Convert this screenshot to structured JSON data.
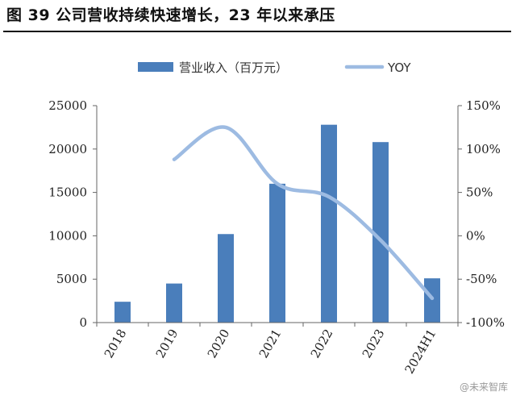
{
  "title": "图 39 公司营收持续快速增长，23 年以来承压",
  "watermark": "@未来智库",
  "colors": {
    "bar": "#4a7ebb",
    "line": "#9dbbe2",
    "axis": "#666666"
  },
  "chart_data": {
    "type": "bar",
    "categories": [
      "2018",
      "2019",
      "2020",
      "2021",
      "2022",
      "2023",
      "2024H1"
    ],
    "series": [
      {
        "name": "营业收入（百万元）",
        "type": "bar",
        "axis": "left",
        "values": [
          2400,
          4500,
          10200,
          16000,
          22800,
          20800,
          5100
        ]
      },
      {
        "name": "YOY",
        "type": "line",
        "axis": "right",
        "smooth": true,
        "values": [
          null,
          88,
          125,
          60,
          45,
          -5,
          -72
        ]
      }
    ],
    "y_left": {
      "lim": [
        0,
        25000
      ],
      "ticks": [
        "0",
        "5000",
        "10000",
        "15000",
        "20000",
        "25000"
      ],
      "tick_values": [
        0,
        5000,
        10000,
        15000,
        20000,
        25000
      ]
    },
    "y_right": {
      "lim": [
        -100,
        150
      ],
      "ticks": [
        "-100%",
        "-50%",
        "0%",
        "50%",
        "100%",
        "150%"
      ],
      "tick_values": [
        -100,
        -50,
        0,
        50,
        100,
        150
      ]
    },
    "legend": "top",
    "grid": false
  }
}
